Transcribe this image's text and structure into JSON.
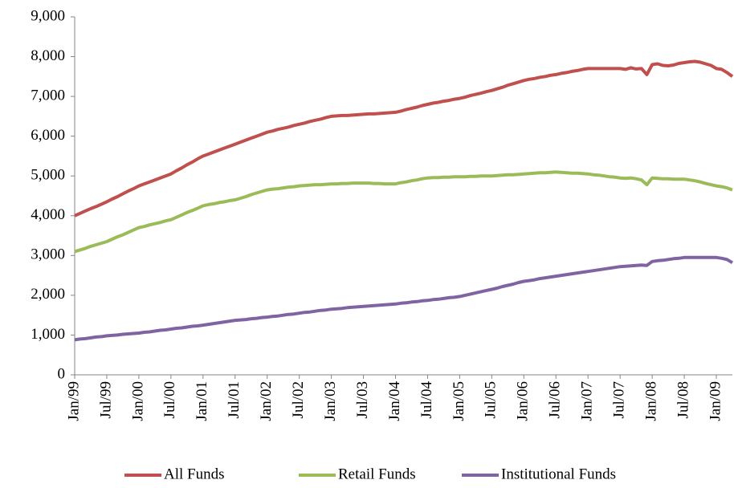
{
  "chart_data": {
    "type": "line",
    "categories": [
      "Jan/99",
      null,
      null,
      null,
      null,
      null,
      "Jul/99",
      null,
      null,
      null,
      null,
      null,
      "Jan/00",
      null,
      null,
      null,
      null,
      null,
      "Jul/00",
      null,
      null,
      null,
      null,
      null,
      "Jan/01",
      null,
      null,
      null,
      null,
      null,
      "Jul/01",
      null,
      null,
      null,
      null,
      null,
      "Jan/02",
      null,
      null,
      null,
      null,
      null,
      "Jul/02",
      null,
      null,
      null,
      null,
      null,
      "Jan/03",
      null,
      null,
      null,
      null,
      null,
      "Jul/03",
      null,
      null,
      null,
      null,
      null,
      "Jan/04",
      null,
      null,
      null,
      null,
      null,
      "Jul/04",
      null,
      null,
      null,
      null,
      null,
      "Jan/05",
      null,
      null,
      null,
      null,
      null,
      "Jul/05",
      null,
      null,
      null,
      null,
      null,
      "Jan/06",
      null,
      null,
      null,
      null,
      null,
      "Jul/06",
      null,
      null,
      null,
      null,
      null,
      "Jan/07",
      null,
      null,
      null,
      null,
      null,
      "Jul/07",
      null,
      null,
      null,
      null,
      null,
      "Jan/08",
      null,
      null,
      null,
      null,
      null,
      "Jul/08",
      null,
      null,
      null,
      null,
      null,
      "Jan/09",
      null,
      null,
      null
    ],
    "series": [
      {
        "name": "All Funds",
        "color": "#c0504d",
        "values": [
          4000,
          4060,
          4120,
          4180,
          4230,
          4290,
          4350,
          4420,
          4480,
          4550,
          4620,
          4680,
          4750,
          4800,
          4850,
          4900,
          4950,
          5000,
          5050,
          5130,
          5200,
          5280,
          5350,
          5430,
          5500,
          5550,
          5600,
          5650,
          5700,
          5750,
          5800,
          5850,
          5900,
          5950,
          6000,
          6050,
          6100,
          6130,
          6170,
          6200,
          6230,
          6270,
          6300,
          6330,
          6370,
          6400,
          6430,
          6470,
          6500,
          6510,
          6520,
          6520,
          6530,
          6540,
          6550,
          6560,
          6560,
          6570,
          6580,
          6590,
          6600,
          6630,
          6670,
          6700,
          6730,
          6770,
          6800,
          6830,
          6850,
          6880,
          6900,
          6930,
          6950,
          6980,
          7020,
          7050,
          7080,
          7120,
          7150,
          7190,
          7230,
          7280,
          7320,
          7360,
          7400,
          7430,
          7450,
          7480,
          7500,
          7530,
          7550,
          7580,
          7600,
          7630,
          7650,
          7680,
          7700,
          7700,
          7700,
          7700,
          7700,
          7700,
          7700,
          7680,
          7720,
          7690,
          7700,
          7550,
          7800,
          7820,
          7780,
          7770,
          7790,
          7830,
          7850,
          7870,
          7880,
          7860,
          7820,
          7780,
          7700,
          7680,
          7600,
          7500
        ]
      },
      {
        "name": "Retail Funds",
        "color": "#9bbb59",
        "values": [
          3100,
          3140,
          3180,
          3230,
          3270,
          3310,
          3350,
          3410,
          3470,
          3520,
          3580,
          3640,
          3700,
          3730,
          3770,
          3800,
          3830,
          3870,
          3900,
          3960,
          4020,
          4080,
          4130,
          4190,
          4250,
          4280,
          4300,
          4330,
          4350,
          4380,
          4400,
          4440,
          4480,
          4530,
          4570,
          4610,
          4650,
          4670,
          4680,
          4700,
          4720,
          4730,
          4750,
          4760,
          4770,
          4780,
          4780,
          4790,
          4800,
          4800,
          4810,
          4810,
          4820,
          4820,
          4820,
          4820,
          4810,
          4810,
          4800,
          4800,
          4800,
          4830,
          4850,
          4880,
          4900,
          4930,
          4950,
          4960,
          4960,
          4970,
          4970,
          4980,
          4980,
          4980,
          4990,
          4990,
          5000,
          5000,
          5000,
          5010,
          5020,
          5030,
          5030,
          5040,
          5050,
          5060,
          5070,
          5080,
          5080,
          5090,
          5100,
          5090,
          5080,
          5070,
          5070,
          5060,
          5050,
          5030,
          5020,
          5000,
          4980,
          4970,
          4950,
          4940,
          4950,
          4930,
          4900,
          4780,
          4950,
          4940,
          4930,
          4930,
          4920,
          4920,
          4920,
          4900,
          4880,
          4850,
          4810,
          4780,
          4750,
          4730,
          4700,
          4650
        ]
      },
      {
        "name": "Institutional Funds",
        "color": "#8064a2",
        "values": [
          880,
          900,
          910,
          930,
          950,
          960,
          980,
          990,
          1000,
          1020,
          1030,
          1040,
          1050,
          1070,
          1080,
          1100,
          1120,
          1130,
          1150,
          1170,
          1180,
          1200,
          1220,
          1230,
          1250,
          1270,
          1290,
          1310,
          1330,
          1350,
          1370,
          1380,
          1390,
          1410,
          1420,
          1440,
          1450,
          1470,
          1480,
          1500,
          1520,
          1530,
          1550,
          1570,
          1580,
          1600,
          1620,
          1630,
          1650,
          1660,
          1670,
          1690,
          1700,
          1710,
          1720,
          1730,
          1740,
          1750,
          1760,
          1770,
          1780,
          1800,
          1810,
          1830,
          1840,
          1860,
          1870,
          1890,
          1900,
          1920,
          1940,
          1950,
          1970,
          2000,
          2030,
          2060,
          2090,
          2120,
          2150,
          2180,
          2220,
          2250,
          2280,
          2320,
          2350,
          2370,
          2390,
          2420,
          2440,
          2460,
          2480,
          2500,
          2520,
          2540,
          2560,
          2580,
          2600,
          2620,
          2640,
          2660,
          2680,
          2700,
          2720,
          2730,
          2740,
          2750,
          2760,
          2750,
          2850,
          2870,
          2880,
          2900,
          2920,
          2930,
          2950,
          2950,
          2950,
          2950,
          2950,
          2950,
          2950,
          2930,
          2900,
          2820
        ]
      }
    ],
    "ylim": [
      0,
      9000
    ],
    "yticks": [
      0,
      {
        "value": 1000,
        "label": "1,000"
      },
      {
        "value": 2000,
        "label": "2,000"
      },
      {
        "value": 3000,
        "label": "3,000"
      },
      {
        "value": 4000,
        "label": "4,000"
      },
      {
        "value": 5000,
        "label": "5,000"
      },
      {
        "value": 6000,
        "label": "6,000"
      },
      {
        "value": 7000,
        "label": "7,000"
      },
      {
        "value": 8000,
        "label": "8,000"
      },
      {
        "value": 9000,
        "label": "9,000"
      }
    ],
    "grid": false,
    "legend": "bottom"
  }
}
